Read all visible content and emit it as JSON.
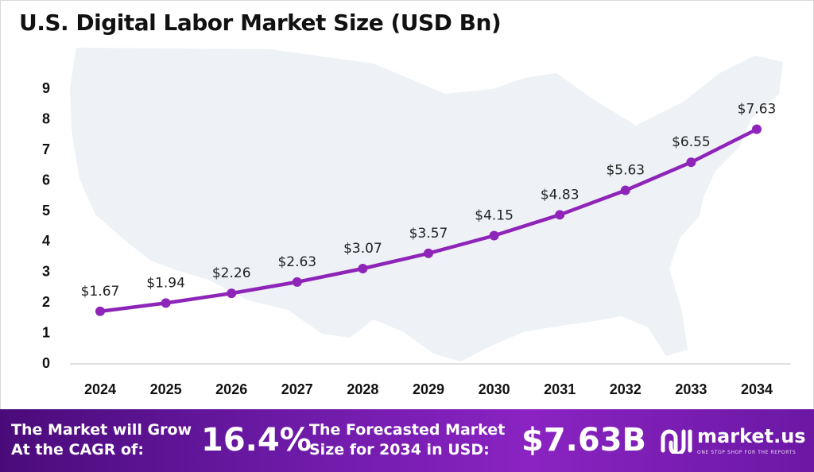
{
  "title": "U.S. Digital Labor Market Size (USD Bn)",
  "chart_data": {
    "type": "line",
    "title": "U.S. Digital Labor Market Size (USD Bn)",
    "categories": [
      "2024",
      "2025",
      "2026",
      "2027",
      "2028",
      "2029",
      "2030",
      "2031",
      "2032",
      "2033",
      "2034"
    ],
    "values": [
      1.67,
      1.94,
      2.26,
      2.63,
      3.07,
      3.57,
      4.15,
      4.83,
      5.63,
      6.55,
      7.63
    ],
    "data_labels": [
      "$1.67",
      "$1.94",
      "$2.26",
      "$2.63",
      "$3.07",
      "$3.57",
      "$4.15",
      "$4.83",
      "$5.63",
      "$6.55",
      "$7.63"
    ],
    "y_ticks": [
      "0",
      "1",
      "2",
      "3",
      "4",
      "5",
      "6",
      "7",
      "8",
      "9"
    ],
    "ylim": [
      0,
      9
    ],
    "xlabel": "",
    "ylabel": "",
    "grid": false,
    "line_color": "#8e24b8"
  },
  "footer": {
    "cagr_label_line1": "The Market will Grow",
    "cagr_label_line2": "At the CAGR of:",
    "cagr_value": "16.4%",
    "forecast_label_line1": "The Forecasted Market",
    "forecast_label_line2": "Size for 2034 in USD:",
    "forecast_value": "$7.63B",
    "logo_text": "market.us",
    "logo_tagline": "ONE STOP SHOP FOR THE REPORTS"
  }
}
